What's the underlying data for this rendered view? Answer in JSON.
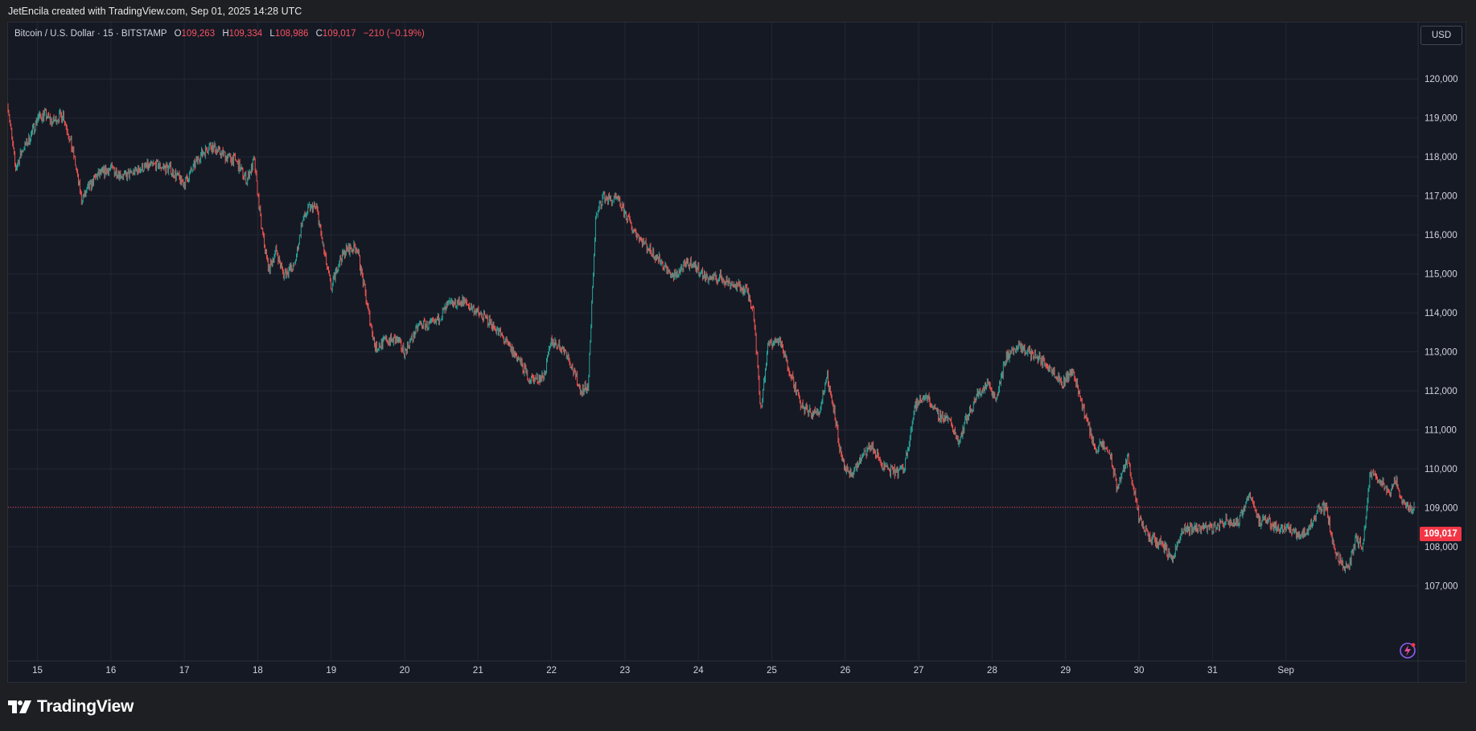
{
  "header": {
    "credit": "JetEncila created with TradingView.com, Sep 01, 2025 14:28 UTC"
  },
  "legend": {
    "symbol": "Bitcoin / U.S. Dollar · 15 · BITSTAMP",
    "o_label": "O",
    "o_value": "109,263",
    "h_label": "H",
    "h_value": "109,334",
    "l_label": "L",
    "l_value": "108,986",
    "c_label": "C",
    "c_value": "109,017",
    "change": "−210 (−0.19%)"
  },
  "currency_button": "USD",
  "last_price_label": "109,017",
  "footer": {
    "brand": "TradingView"
  },
  "colors": {
    "up": "#26a69a",
    "down": "#ef5350",
    "background": "#151924",
    "grid": "#232734",
    "last_price": "#f23645"
  },
  "icons": [
    "tradingview-logo-icon",
    "lightning-bolt-icon"
  ],
  "chart_data": {
    "type": "line",
    "symbol": "BTCUSD",
    "interval": "15",
    "exchange": "BITSTAMP",
    "x_ticks": [
      "15",
      "16",
      "17",
      "18",
      "19",
      "20",
      "21",
      "22",
      "23",
      "24",
      "25",
      "26",
      "27",
      "28",
      "29",
      "30",
      "31",
      "Sep"
    ],
    "y_ticks": [
      "107,000",
      "108,000",
      "109,000",
      "110,000",
      "111,000",
      "112,000",
      "113,000",
      "114,000",
      "115,000",
      "116,000",
      "117,000",
      "118,000",
      "119,000",
      "120,000"
    ],
    "ylim": [
      106100,
      120500
    ],
    "xlim": [
      14.6,
      33.8
    ],
    "last_price": 109017,
    "grid": true,
    "series": [
      {
        "x": [
          14.6,
          14.7,
          14.8,
          14.9,
          15.0,
          15.1,
          15.2,
          15.35,
          15.5,
          15.6,
          15.7,
          15.8,
          16.0,
          16.2,
          16.4,
          16.6,
          16.8,
          17.0,
          17.2,
          17.35,
          17.5,
          17.7,
          17.85,
          17.95,
          18.05,
          18.15,
          18.25,
          18.35,
          18.5,
          18.6,
          18.7,
          18.8,
          18.9,
          19.0,
          19.1,
          19.2,
          19.35,
          19.5,
          19.6,
          19.75,
          19.9,
          20.0,
          20.2,
          20.4,
          20.6,
          20.8,
          21.0,
          21.2,
          21.4,
          21.55,
          21.7,
          21.8,
          21.9,
          22.0,
          22.2,
          22.4,
          22.5,
          22.6,
          22.7,
          22.8,
          22.9,
          23.1,
          23.3,
          23.5,
          23.65,
          23.75,
          23.9,
          24.1,
          24.3,
          24.5,
          24.65,
          24.75,
          24.85,
          24.95,
          25.1,
          25.25,
          25.4,
          25.55,
          25.65,
          25.75,
          25.85,
          25.95,
          26.05,
          26.2,
          26.35,
          26.5,
          26.65,
          26.8,
          26.95,
          27.1,
          27.25,
          27.4,
          27.55,
          27.65,
          27.8,
          27.95,
          28.05,
          28.2,
          28.35,
          28.5,
          28.65,
          28.8,
          28.95,
          29.1,
          29.25,
          29.4,
          29.5,
          29.6,
          29.7,
          29.85,
          30.0,
          30.15,
          30.3,
          30.45,
          30.6,
          30.75,
          30.9,
          31.05,
          31.2,
          31.35,
          31.5,
          31.65,
          31.75,
          31.85,
          32.0,
          32.15,
          32.3,
          32.45,
          32.55,
          32.65,
          32.75,
          32.85,
          32.95,
          33.05,
          33.15,
          33.3,
          33.4,
          33.5,
          33.6,
          33.7,
          33.75
        ],
        "y": [
          119300,
          117700,
          118200,
          118500,
          119000,
          119100,
          118900,
          119100,
          118000,
          116900,
          117200,
          117500,
          117700,
          117500,
          117700,
          117800,
          117700,
          117300,
          118000,
          118300,
          118100,
          117900,
          117400,
          117900,
          116200,
          115100,
          115600,
          115000,
          115200,
          116300,
          116700,
          116700,
          115600,
          114600,
          115300,
          115600,
          115700,
          114100,
          113100,
          113300,
          113300,
          113000,
          113700,
          113700,
          114200,
          114300,
          114000,
          113700,
          113200,
          112800,
          112300,
          112300,
          112400,
          113300,
          113000,
          112000,
          112100,
          116400,
          117000,
          116900,
          116900,
          116200,
          115700,
          115300,
          114900,
          115100,
          115300,
          114900,
          114900,
          114700,
          114600,
          114100,
          111500,
          113200,
          113300,
          112500,
          111600,
          111400,
          111500,
          112400,
          111500,
          110200,
          109800,
          110200,
          110600,
          110100,
          109900,
          110000,
          111600,
          111900,
          111400,
          111300,
          110700,
          111300,
          111900,
          112200,
          111800,
          112900,
          113100,
          113000,
          112800,
          112600,
          112200,
          112500,
          111500,
          110500,
          110600,
          110400,
          109500,
          110300,
          108700,
          108200,
          108100,
          107700,
          108400,
          108500,
          108500,
          108500,
          108700,
          108600,
          109400,
          108600,
          108700,
          108500,
          108500,
          108300,
          108400,
          109000,
          109000,
          108000,
          107600,
          107400,
          108200,
          108000,
          109900,
          109700,
          109300,
          109700,
          109100,
          109000,
          109017
        ]
      }
    ]
  }
}
